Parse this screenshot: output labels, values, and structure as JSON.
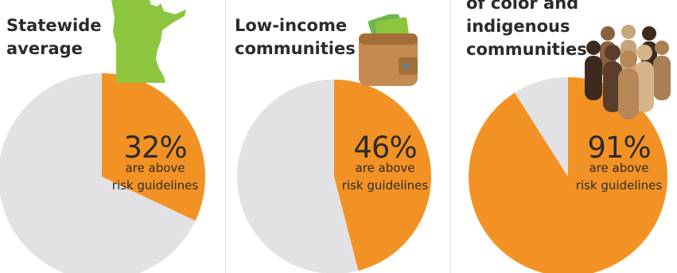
{
  "colors": {
    "above": "#f39224",
    "below": "#e2e2e4",
    "text": "#2b2b2b",
    "divider": "#dcdcdc"
  },
  "chart_data": [
    {
      "type": "pie",
      "title": "Statewide average",
      "slices": [
        {
          "label": "are above risk guidelines",
          "value": 32
        },
        {
          "label": "",
          "value": 68
        }
      ],
      "value_label": "32%",
      "caption_line1": "are above",
      "caption_line2": "risk guidelines",
      "icon": "minnesota-state-map-icon"
    },
    {
      "type": "pie",
      "title": "Low-income communities",
      "slices": [
        {
          "label": "are above risk guidelines",
          "value": 46
        },
        {
          "label": "",
          "value": 54
        }
      ],
      "value_label": "46%",
      "caption_line1": "are above",
      "caption_line2": "risk guidelines",
      "icon": "wallet-with-cash-icon"
    },
    {
      "type": "pie",
      "title": "of color and indigenous communities",
      "slices": [
        {
          "label": "are above risk guidelines",
          "value": 91
        },
        {
          "label": "",
          "value": 9
        }
      ],
      "value_label": "91%",
      "caption_line1": "are above",
      "caption_line2": "risk guidelines",
      "icon": "group-of-people-icon"
    }
  ],
  "panels": [
    {
      "title_lines": [
        "Statewide",
        "average"
      ]
    },
    {
      "title_lines": [
        "Low-income",
        "communities"
      ]
    },
    {
      "title_lines": [
        "of color and",
        "indigenous",
        "communities"
      ]
    }
  ]
}
